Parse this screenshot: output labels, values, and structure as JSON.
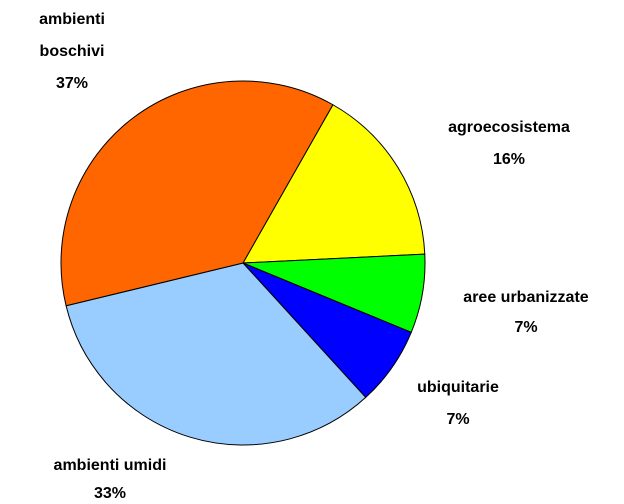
{
  "chart_data": {
    "type": "pie",
    "categories": [
      "agroecosistema",
      "aree urbanizzate",
      "ubiquitarie",
      "ambienti umidi",
      "ambienti boschivi"
    ],
    "values": [
      16,
      7,
      7,
      33,
      37
    ],
    "value_labels": [
      "16%",
      "7%",
      "7%",
      "33%",
      "37%"
    ],
    "colors": [
      "#ffff00",
      "#00ff00",
      "#0000ff",
      "#99ccff",
      "#ff6600"
    ]
  }
}
